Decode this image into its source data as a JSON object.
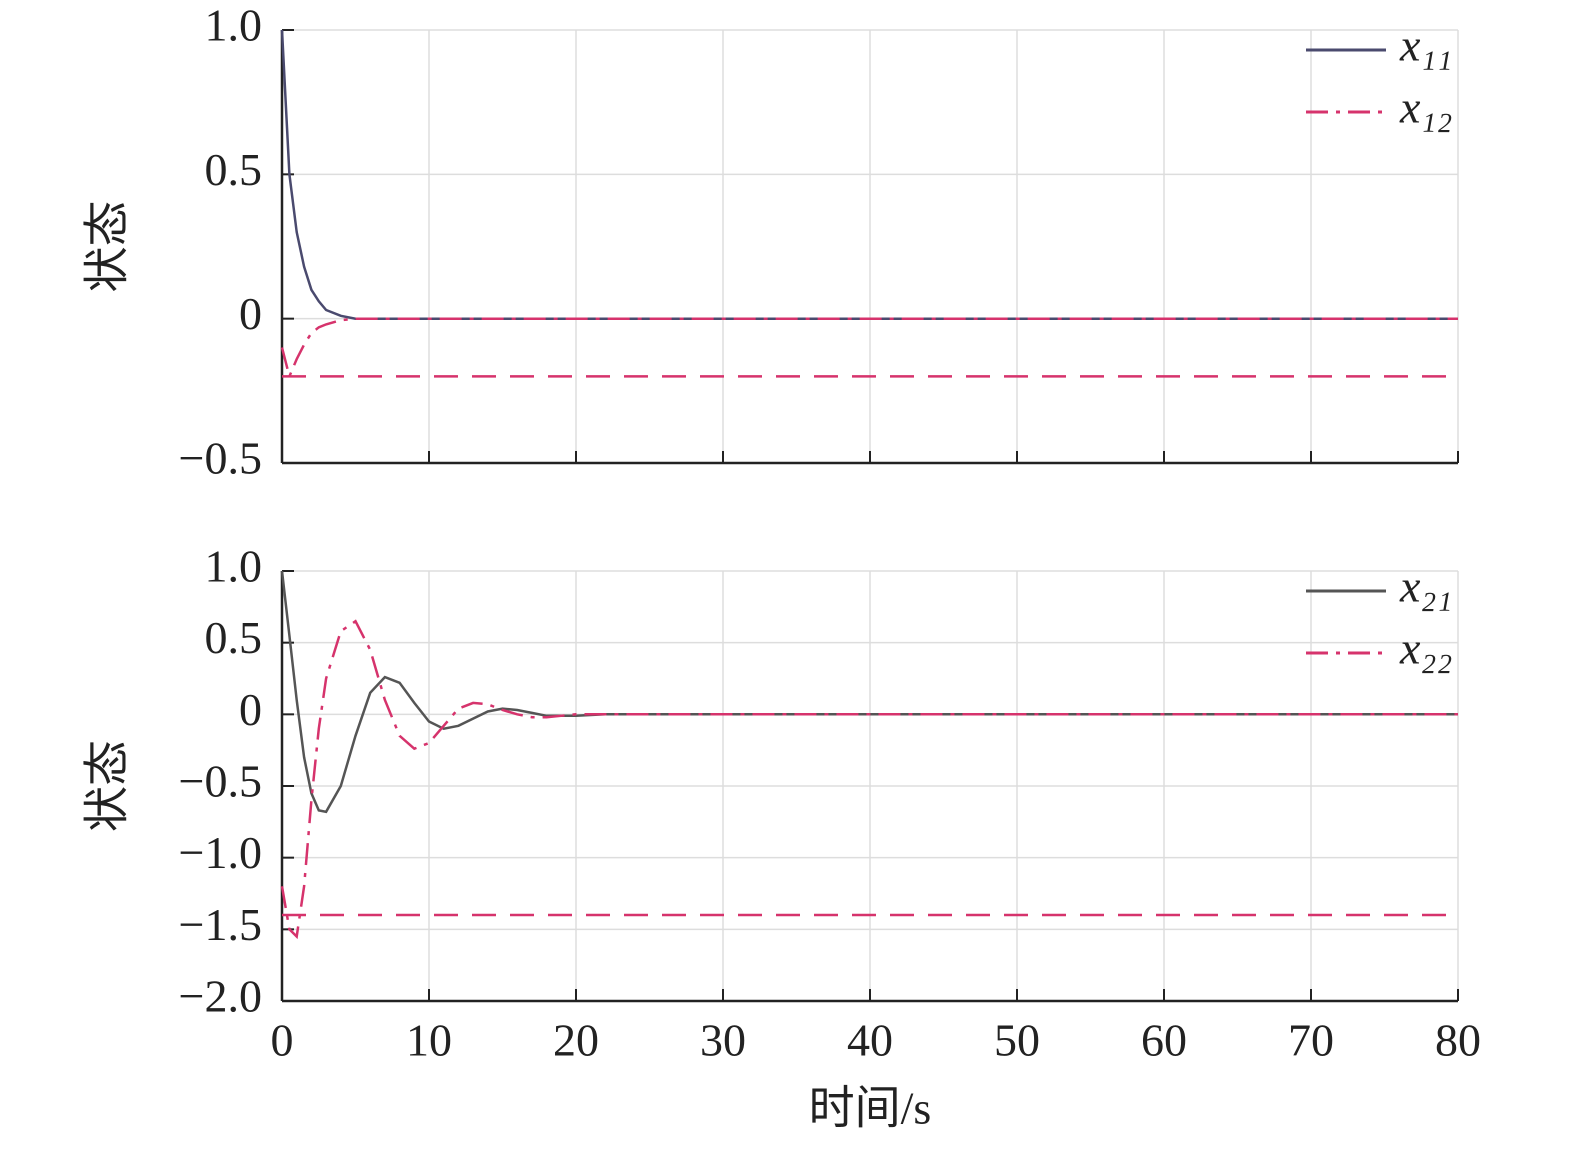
{
  "chart_data": [
    {
      "type": "line",
      "ylabel": "状态",
      "x": [
        0,
        0.5,
        1,
        1.5,
        2,
        2.5,
        3,
        4,
        5,
        6,
        7,
        8,
        9,
        10,
        11,
        12,
        13,
        14,
        15,
        16,
        17,
        18,
        20,
        22,
        25,
        30,
        40,
        50,
        60,
        70,
        80
      ],
      "series": [
        {
          "name": "x₁₁",
          "color": "#4a4a6e",
          "dash": "solid",
          "values": [
            1.0,
            0.5,
            0.3,
            0.18,
            0.1,
            0.06,
            0.03,
            0.01,
            0,
            0,
            0,
            0,
            0,
            0,
            0,
            0,
            0,
            0,
            0,
            0,
            0,
            0,
            0,
            0,
            0,
            0,
            0,
            0,
            0,
            0,
            0
          ]
        },
        {
          "name": "x₁₂",
          "color": "#d6336c",
          "dash": "dashdot",
          "values": [
            -0.1,
            -0.2,
            -0.14,
            -0.09,
            -0.05,
            -0.03,
            -0.02,
            -0.005,
            0,
            0,
            0,
            0,
            0,
            0,
            0,
            0,
            0,
            0,
            0,
            0,
            0,
            0,
            0,
            0,
            0,
            0,
            0,
            0,
            0,
            0,
            0
          ]
        }
      ],
      "reference_lines": [
        -0.2
      ],
      "reference_color": "#d6336c",
      "xlim": [
        0,
        80
      ],
      "xticks": [
        0,
        10,
        20,
        30,
        40,
        50,
        60,
        70,
        80
      ],
      "xticklabels": false,
      "ylim": [
        -0.5,
        1
      ],
      "yticks": [
        {
          "value": 1,
          "label": "1.0"
        },
        0.5,
        0,
        {
          "value": -0.5,
          "label": "−0.5"
        }
      ],
      "grid": true,
      "legend": "upper right"
    },
    {
      "type": "line",
      "ylabel": "状态",
      "xlabel": "时间/s",
      "x": [
        0,
        0.5,
        1,
        1.5,
        2,
        2.5,
        3,
        4,
        5,
        6,
        7,
        8,
        9,
        10,
        11,
        12,
        13,
        14,
        15,
        16,
        17,
        18,
        20,
        22,
        25,
        30,
        40,
        50,
        60,
        70,
        80
      ],
      "series": [
        {
          "name": "x₂₁",
          "color": "#555555",
          "dash": "solid",
          "values": [
            1.0,
            0.55,
            0.1,
            -0.3,
            -0.55,
            -0.67,
            -0.68,
            -0.5,
            -0.15,
            0.15,
            0.26,
            0.22,
            0.08,
            -0.05,
            -0.1,
            -0.08,
            -0.03,
            0.02,
            0.04,
            0.03,
            0.01,
            -0.01,
            -0.01,
            0,
            0,
            0,
            0,
            0,
            0,
            0,
            0
          ]
        },
        {
          "name": "x₂₂",
          "color": "#d6336c",
          "dash": "dashdot",
          "values": [
            -1.2,
            -1.5,
            -1.55,
            -1.2,
            -0.6,
            -0.1,
            0.25,
            0.58,
            0.65,
            0.45,
            0.1,
            -0.15,
            -0.24,
            -0.2,
            -0.08,
            0.04,
            0.08,
            0.07,
            0.03,
            0,
            -0.02,
            -0.02,
            0,
            0,
            0,
            0,
            0,
            0,
            0,
            0,
            0
          ]
        }
      ],
      "reference_lines": [
        -1.4
      ],
      "reference_color": "#d6336c",
      "xlim": [
        0,
        80
      ],
      "xticks": [
        0,
        10,
        20,
        30,
        40,
        50,
        60,
        70,
        80
      ],
      "xticklabels": true,
      "ylim": [
        -2,
        1
      ],
      "yticks": [
        {
          "value": 1,
          "label": "1.0"
        },
        0.5,
        0,
        {
          "value": -0.5,
          "label": "−0.5"
        },
        {
          "value": -1,
          "label": "−1.0"
        },
        {
          "value": -1.5,
          "label": "−1.5"
        },
        {
          "value": -2,
          "label": "−2.0"
        }
      ],
      "grid": true,
      "legend": "upper right"
    }
  ]
}
